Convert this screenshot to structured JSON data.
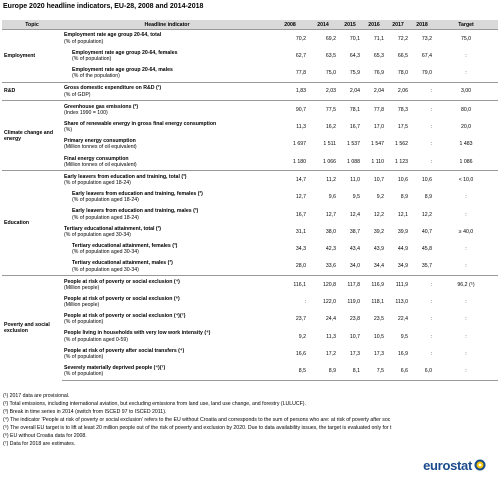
{
  "title": "Europe 2020 headline indicators, EU-28, 2008 and 2014-2018",
  "table": {
    "header": [
      "Topic",
      "Headline indicator",
      "2008",
      "2014",
      "2015",
      "2016",
      "2017",
      "2018",
      "Target"
    ],
    "groups": [
      {
        "topic": "Employment",
        "rows": [
          {
            "indicator": "Employment rate age group 20-64, total",
            "unit": "(% of population)",
            "values": [
              "70,2",
              "69,2",
              "70,1",
              "71,1",
              "72,2",
              "73,2",
              "75,0"
            ]
          },
          {
            "indicator": "Employment rate age group 20-64, females",
            "unit": "(% of population)",
            "values": [
              "62,7",
              "63,5",
              "64,3",
              "65,3",
              "66,5",
              "67,4",
              ":"
            ]
          },
          {
            "indicator": "Employment rate age group 20-64, males",
            "unit": "(% of the population)",
            "values": [
              "77,8",
              "75,0",
              "75,9",
              "76,9",
              "78,0",
              "79,0",
              ":"
            ]
          }
        ]
      },
      {
        "topic": "R&D",
        "rows": [
          {
            "indicator": "Gross domestic expenditure on R&D (¹)",
            "unit": "(% of GDP)",
            "values": [
              "1,83",
              "2,03",
              "2,04",
              "2,04",
              "2,06",
              ":",
              "3,00"
            ]
          }
        ]
      },
      {
        "topic": "Climate change and energy",
        "rows": [
          {
            "indicator": "Greenhouse gas emissions (²)",
            "unit": "(Index 1990 = 100)",
            "values": [
              "90,7",
              "77,5",
              "78,1",
              "77,8",
              "78,3",
              ":",
              "80,0"
            ]
          },
          {
            "indicator": "Share of renewable energy in gross final energy consumption",
            "unit": "(%)",
            "values": [
              "11,3",
              "16,2",
              "16,7",
              "17,0",
              "17,5",
              ":",
              "20,0"
            ]
          },
          {
            "indicator": "Primary energy consumption",
            "unit": "(Million tonnes of oil equivalent)",
            "values": [
              "1 697",
              "1 511",
              "1 537",
              "1 547",
              "1 562",
              ":",
              "1 483"
            ]
          },
          {
            "indicator": "Final energy consumption",
            "unit": "(Million tonnes of oil equivalent)",
            "values": [
              "1 180",
              "1 066",
              "1 088",
              "1 110",
              "1 123",
              ":",
              "1 086"
            ]
          }
        ]
      },
      {
        "topic": "Education",
        "rows": [
          {
            "indicator": "Early leavers from education and training, total (³)",
            "unit": "(% of population aged 18-24)",
            "values": [
              "14,7",
              "11,2",
              "11,0",
              "10,7",
              "10,6",
              "10,6",
              "< 10,0"
            ]
          },
          {
            "indicator": "Early leavers from education and training, females (³)",
            "unit": "(% of population aged 18-24)",
            "values": [
              "12,7",
              "9,6",
              "9,5",
              "9,2",
              "8,9",
              "8,9",
              ":"
            ]
          },
          {
            "indicator": "Early leavers from education and training, males (³)",
            "unit": "(% of population aged 18-24)",
            "values": [
              "16,7",
              "12,7",
              "12,4",
              "12,2",
              "12,1",
              "12,2",
              ":"
            ]
          },
          {
            "indicator": "Tertiary educational attainment, total (³)",
            "unit": "(% of population aged 30-34)",
            "values": [
              "31,1",
              "38,0",
              "38,7",
              "39,2",
              "39,9",
              "40,7",
              "≥ 40,0"
            ]
          },
          {
            "indicator": "Tertiary educational attainment, females (³)",
            "unit": "(% of population aged 30-34)",
            "values": [
              "34,3",
              "42,3",
              "43,4",
              "43,9",
              "44,9",
              "45,8",
              ":"
            ]
          },
          {
            "indicator": "Tertiary educational attainment, males (³)",
            "unit": "(% of population aged 30-34)",
            "values": [
              "28,0",
              "33,6",
              "34,0",
              "34,4",
              "34,9",
              "35,7",
              ":"
            ]
          }
        ]
      },
      {
        "topic": "Poverty and social exclusion",
        "rows": [
          {
            "indicator": "People at risk of poverty or social exclusion (⁴)",
            "unit": "(Million people)",
            "values": [
              "116,1",
              "120,8",
              "117,8",
              "116,9",
              "111,9",
              ":",
              "96,2 (⁵)"
            ]
          },
          {
            "indicator": "People at risk of poverty or social exclusion (⁶)",
            "unit": "(Million people)",
            "values": [
              ":",
              "122,0",
              "119,0",
              "118,1",
              "113,0",
              ":",
              ":"
            ]
          },
          {
            "indicator": "People at risk of poverty or social exclusion (⁴)(⁷)",
            "unit": "(% of population)",
            "values": [
              "23,7",
              "24,4",
              "23,8",
              "23,5",
              "22,4",
              ":",
              ":"
            ]
          },
          {
            "indicator": "People living in households with very low work intensity (⁴)",
            "unit": "(% of population aged 0-59)",
            "values": [
              "9,2",
              "11,3",
              "10,7",
              "10,5",
              "9,5",
              ":",
              ":"
            ]
          },
          {
            "indicator": "People at risk of poverty after social transfers (⁴)",
            "unit": "(% of population)",
            "values": [
              "16,6",
              "17,2",
              "17,3",
              "17,3",
              "16,9",
              ":",
              ":"
            ]
          },
          {
            "indicator": "Severely materially deprived people (⁴)(⁷)",
            "unit": "(% of population)",
            "values": [
              "8,5",
              "8,9",
              "8,1",
              "7,5",
              "6,6",
              "6,0",
              ":"
            ]
          }
        ]
      }
    ]
  },
  "footnotes": [
    "(¹) 2017 data are provisional.",
    "(²) Total emissions, including international aviation, but excluding emissions from land use, land use change, and forestry (LULUCF).",
    "(³) Break in time series in 2014 (switch from ISCED 97 to ISCED 2011).",
    "(⁴) The indicator 'People at risk of poverty or social exclusion' refers to the EU without Croatia and corresponds to the sum of persons who are: at risk of poverty after soc",
    "(⁵) The overall EU target is to lift at least 20 million people out of the risk of poverty and exclusion by 2020. Due to data availability issues, the target is evaluated only for t",
    "(⁶) EU without Croatia data for 2008.",
    "(⁷) Data for 2018 are estimates."
  ],
  "logo": "eurostat"
}
